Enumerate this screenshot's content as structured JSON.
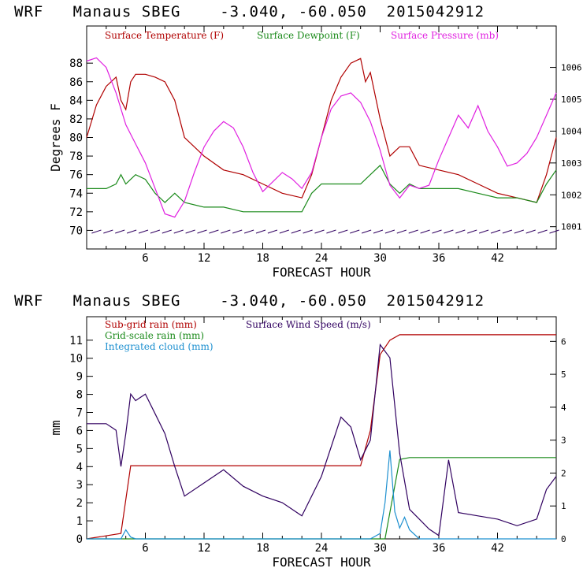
{
  "panel1": {
    "title": "WRF   Manaus SBEG    -3.040, -60.050  2015042912"
  },
  "panel2": {
    "title": "WRF   Manaus SBEG    -3.040, -60.050  2015042912"
  },
  "colors": {
    "temperature": "#b00000",
    "dewpoint": "#1a8a1a",
    "pressure": "#e020e0",
    "wind": "#300060",
    "subgrid": "#b00000",
    "gridscale": "#1a8a1a",
    "cloud": "#1e90d0"
  },
  "chart_data": [
    {
      "type": "line",
      "xlabel": "FORECAST HOUR",
      "ylabel": "Degrees F",
      "xlim": [
        0,
        48
      ],
      "ylim": [
        68,
        92
      ],
      "y2lim": [
        1000.3,
        1007.3
      ],
      "xticks": [
        "6",
        "12",
        "18",
        "24",
        "30",
        "36",
        "42"
      ],
      "yticks": [
        "70",
        "72",
        "74",
        "76",
        "78",
        "80",
        "82",
        "84",
        "86",
        "88"
      ],
      "y2ticks": [
        "1001",
        "1002",
        "1003",
        "1004",
        "1005",
        "1006"
      ],
      "legend": [
        "Surface Temperature (F)",
        "Surface Dewpoint (F)",
        "Surface Pressure (mb)"
      ],
      "series": [
        {
          "name": "Surface Temperature (F)",
          "axis": "left",
          "x": [
            0,
            1,
            2,
            3,
            3.5,
            4,
            4.5,
            5,
            6,
            7,
            8,
            9,
            10,
            12,
            14,
            16,
            18,
            20,
            22,
            23,
            24,
            25,
            26,
            27,
            28,
            28.5,
            29,
            30,
            31,
            32,
            33,
            34,
            36,
            38,
            40,
            42,
            44,
            46,
            47,
            48
          ],
          "y": [
            80,
            83.5,
            85.5,
            86.5,
            84,
            83,
            86,
            86.8,
            86.8,
            86.5,
            86,
            84,
            80,
            78,
            76.5,
            76,
            75,
            74,
            73.5,
            76,
            80,
            84,
            86.5,
            88,
            88.5,
            86,
            87,
            82,
            78,
            79,
            79,
            77,
            76.5,
            76,
            75,
            74,
            73.5,
            73,
            76,
            80
          ]
        },
        {
          "name": "Surface Dewpoint (F)",
          "axis": "left",
          "x": [
            0,
            1,
            2,
            3,
            3.5,
            4,
            4.5,
            5,
            6,
            7,
            8,
            9,
            10,
            12,
            14,
            16,
            18,
            20,
            22,
            23,
            24,
            26,
            28,
            29,
            30,
            31,
            32,
            33,
            34,
            36,
            38,
            40,
            42,
            44,
            46,
            47,
            48
          ],
          "y": [
            74.5,
            74.5,
            74.5,
            75,
            76,
            75,
            75.5,
            76,
            75.5,
            74,
            73,
            74,
            73,
            72.5,
            72.5,
            72,
            72,
            72,
            72,
            74,
            75,
            75,
            75,
            76,
            77,
            75,
            74,
            75,
            74.5,
            74.5,
            74.5,
            74,
            73.5,
            73.5,
            73,
            75,
            76.5
          ]
        },
        {
          "name": "Surface Pressure (mb)",
          "axis": "right",
          "x": [
            0,
            1,
            2,
            3,
            4,
            5,
            6,
            7,
            8,
            9,
            10,
            11,
            12,
            13,
            14,
            15,
            16,
            17,
            18,
            19,
            20,
            21,
            22,
            23,
            24,
            25,
            26,
            27,
            28,
            29,
            30,
            31,
            32,
            33,
            34,
            35,
            36,
            37,
            38,
            39,
            40,
            41,
            42,
            43,
            44,
            45,
            46,
            47,
            48
          ],
          "y": [
            1006.2,
            1006.3,
            1006,
            1005.2,
            1004.2,
            1003.6,
            1003,
            1002.2,
            1001.4,
            1001.3,
            1001.8,
            1002.7,
            1003.5,
            1004,
            1004.3,
            1004.1,
            1003.5,
            1002.7,
            1002.1,
            1002.4,
            1002.7,
            1002.5,
            1002.2,
            1002.7,
            1003.8,
            1004.7,
            1005.1,
            1005.2,
            1004.9,
            1004.3,
            1003.4,
            1002.3,
            1001.9,
            1002.3,
            1002.2,
            1002.3,
            1003.1,
            1003.8,
            1004.5,
            1004.1,
            1004.8,
            1004,
            1003.5,
            1002.9,
            1003,
            1003.3,
            1003.8,
            1004.5,
            1005.2
          ]
        }
      ]
    },
    {
      "type": "line",
      "xlabel": "FORECAST HOUR",
      "ylabel": "mm",
      "xlim": [
        0,
        48
      ],
      "ylim": [
        0,
        12.3
      ],
      "y2lim": [
        0,
        6.75
      ],
      "xticks": [
        "6",
        "12",
        "18",
        "24",
        "30",
        "36",
        "42"
      ],
      "yticks": [
        "0",
        "1",
        "2",
        "3",
        "4",
        "5",
        "6",
        "7",
        "8",
        "9",
        "10",
        "11"
      ],
      "y2ticks": [
        "0",
        "1",
        "2",
        "3",
        "4",
        "5",
        "6"
      ],
      "legend": [
        "Sub-grid rain (mm)",
        "Grid-scale rain (mm)",
        "Integrated cloud (mm)",
        "Surface Wind Speed (m/s)"
      ],
      "series": [
        {
          "name": "Sub-grid rain (mm)",
          "axis": "left",
          "x": [
            0,
            3.5,
            4.5,
            28,
            29,
            30,
            31,
            32,
            48
          ],
          "y": [
            0,
            0.3,
            4.05,
            4.05,
            6,
            10.2,
            11,
            11.3,
            11.3
          ]
        },
        {
          "name": "Grid-scale rain (mm)",
          "axis": "left",
          "x": [
            0,
            30.5,
            32,
            33,
            48
          ],
          "y": [
            0,
            0,
            4.4,
            4.5,
            4.5
          ]
        },
        {
          "name": "Integrated cloud (mm)",
          "axis": "left",
          "x": [
            0,
            3.5,
            4,
            4.5,
            5,
            29,
            30,
            30.5,
            31,
            31.5,
            32,
            32.5,
            33,
            34,
            48
          ],
          "y": [
            0,
            0,
            0.5,
            0.1,
            0,
            0,
            0.3,
            2,
            4.9,
            1.5,
            0.6,
            1.2,
            0.5,
            0,
            0
          ]
        },
        {
          "name": "Surface Wind Speed (m/s)",
          "axis": "right",
          "x": [
            0,
            2,
            3,
            3.5,
            4,
            4.5,
            5,
            6,
            7,
            8,
            9,
            10,
            12,
            14,
            16,
            18,
            20,
            22,
            24,
            26,
            27,
            28,
            29,
            30,
            31,
            32,
            33,
            34,
            35,
            36,
            37,
            38,
            40,
            42,
            44,
            46,
            47,
            48
          ],
          "y": [
            3.5,
            3.5,
            3.3,
            2.2,
            3.2,
            4.4,
            4.2,
            4.4,
            3.8,
            3.2,
            2.2,
            1.3,
            1.7,
            2.1,
            1.6,
            1.3,
            1.1,
            0.7,
            1.9,
            3.7,
            3.4,
            2.4,
            3,
            5.9,
            5.5,
            2.6,
            0.9,
            0.6,
            0.3,
            0.1,
            2.4,
            0.8,
            0.7,
            0.6,
            0.4,
            0.6,
            1.5,
            1.9
          ]
        }
      ]
    }
  ]
}
